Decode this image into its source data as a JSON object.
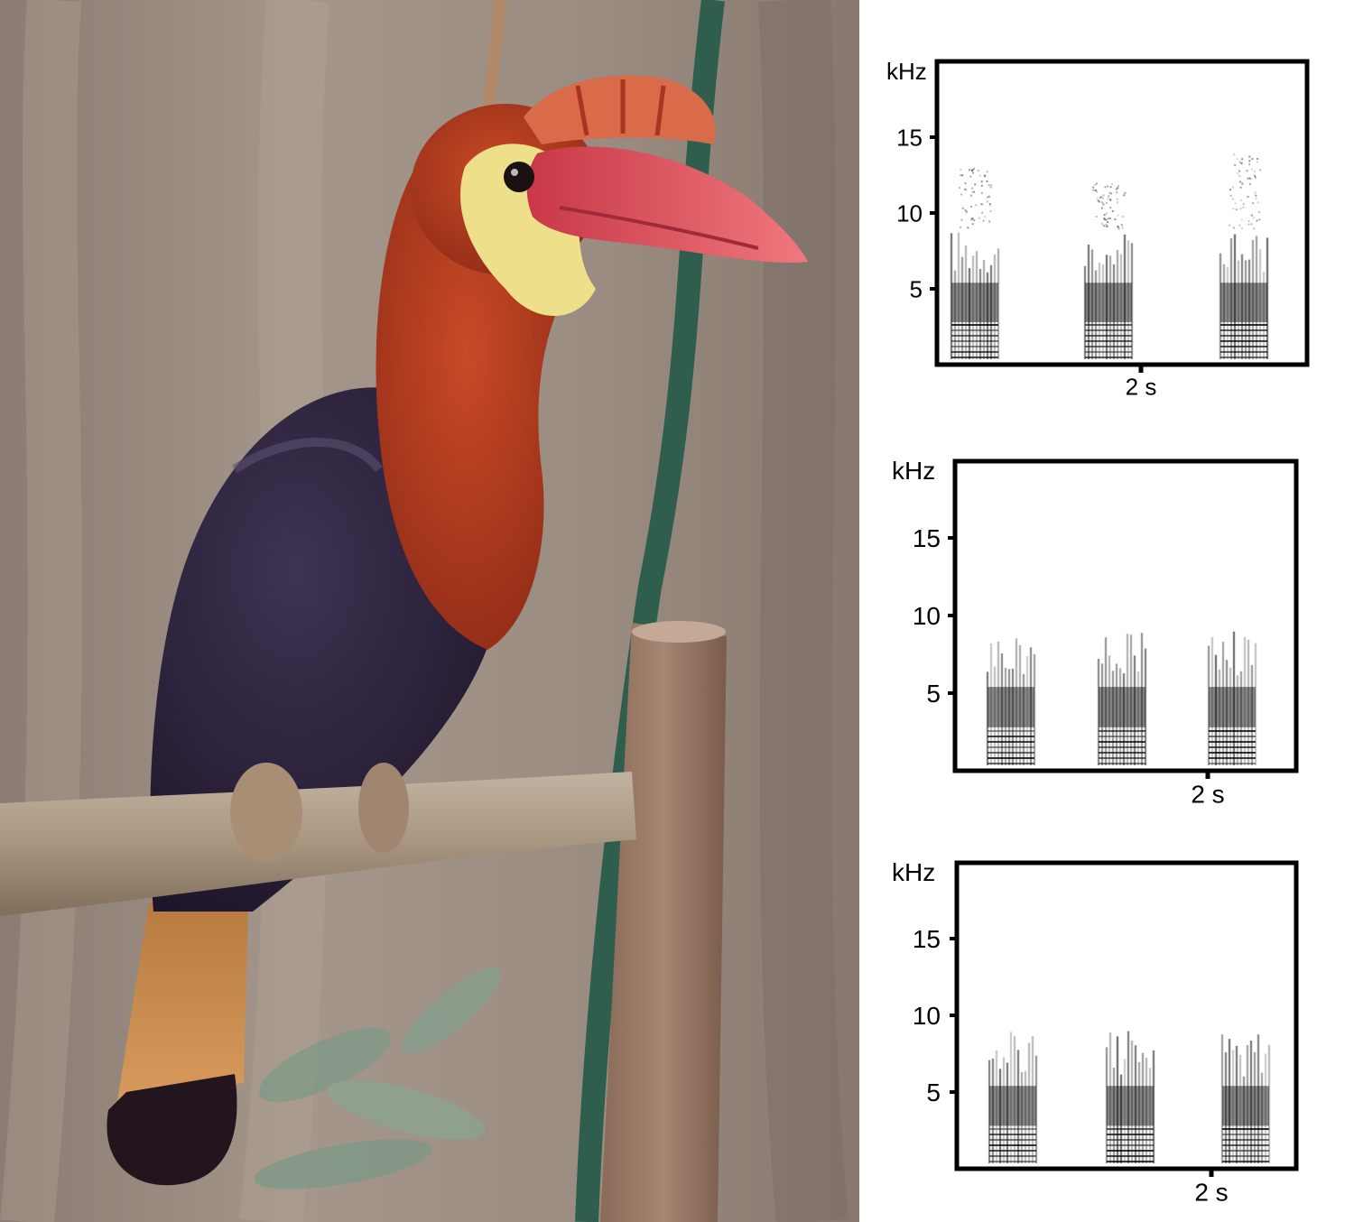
{
  "photo": {
    "subject_icon": "hornbill-photo",
    "colors": {
      "background": "#9c8f84",
      "head": "#b83a1c",
      "casque": "#d96a4a",
      "bill": "#e0505e",
      "throat": "#eedf8a",
      "body": "#2a1f3a",
      "tail": "#c78a4c",
      "perch": "#a99683",
      "post": "#9a7a66",
      "hose": "#2f5e4f"
    }
  },
  "spectrograms": [
    {
      "y_unit": "kHz",
      "y_ticks": [
        "15",
        "10",
        "5"
      ],
      "scale_bar_label": "2 s",
      "notes": [
        {
          "high_cluster_khz": [
            9,
            13
          ]
        },
        {
          "high_cluster_khz": [
            9,
            12
          ]
        },
        {
          "high_cluster_khz": [
            9,
            14
          ]
        }
      ]
    },
    {
      "y_unit": "kHz",
      "y_ticks": [
        "15",
        "10",
        "5"
      ],
      "scale_bar_label": "2 s",
      "notes": [
        {
          "high_cluster_khz": null
        },
        {
          "high_cluster_khz": null
        },
        {
          "high_cluster_khz": null
        }
      ]
    },
    {
      "y_unit": "kHz",
      "y_ticks": [
        "15",
        "10",
        "5"
      ],
      "scale_bar_label": "2 s",
      "notes": [
        {
          "high_cluster_khz": null
        },
        {
          "high_cluster_khz": null
        },
        {
          "high_cluster_khz": null
        }
      ]
    }
  ]
}
